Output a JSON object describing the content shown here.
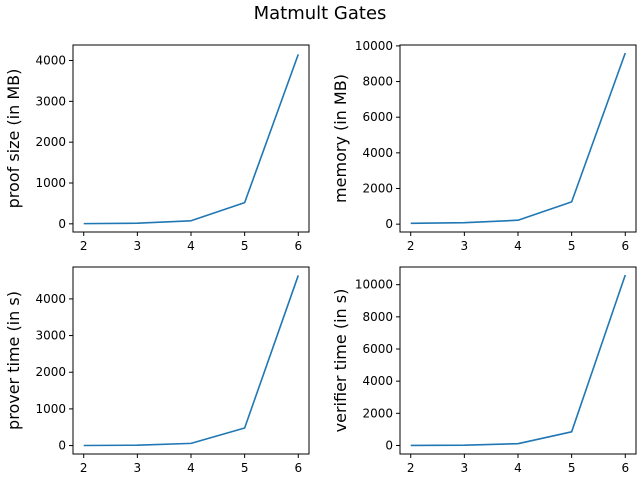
{
  "figure": {
    "title": "Matmult Gates"
  },
  "colors": {
    "series": "#1f77b4"
  },
  "chart_data": [
    {
      "type": "line",
      "x": [
        2,
        3,
        4,
        5,
        6
      ],
      "values": [
        5,
        15,
        75,
        520,
        4150
      ],
      "ylabel": "proof size (in MB)",
      "xlim": [
        1.8,
        6.2
      ],
      "ylim": [
        -200,
        4380
      ],
      "xticks": [
        2,
        3,
        4,
        5,
        6
      ],
      "yticks": [
        0,
        1000,
        2000,
        3000,
        4000
      ],
      "grid": false
    },
    {
      "type": "line",
      "x": [
        2,
        3,
        4,
        5,
        6
      ],
      "values": [
        50,
        80,
        220,
        1250,
        9600
      ],
      "ylabel": "memory (in MB)",
      "xlim": [
        1.8,
        6.2
      ],
      "ylim": [
        -440,
        10050
      ],
      "xticks": [
        2,
        3,
        4,
        5,
        6
      ],
      "yticks": [
        0,
        2000,
        4000,
        6000,
        8000,
        10000
      ],
      "grid": false
    },
    {
      "type": "line",
      "x": [
        2,
        3,
        4,
        5,
        6
      ],
      "values": [
        2,
        10,
        60,
        480,
        4640
      ],
      "ylabel": "prover time (in s)",
      "xlim": [
        1.8,
        6.2
      ],
      "ylim": [
        -230,
        4870
      ],
      "xticks": [
        2,
        3,
        4,
        5,
        6
      ],
      "yticks": [
        0,
        1000,
        2000,
        3000,
        4000
      ],
      "grid": false
    },
    {
      "type": "line",
      "x": [
        2,
        3,
        4,
        5,
        6
      ],
      "values": [
        5,
        20,
        110,
        850,
        10600
      ],
      "ylabel": "verifier time (in s)",
      "xlim": [
        1.8,
        6.2
      ],
      "ylim": [
        -530,
        11100
      ],
      "xticks": [
        2,
        3,
        4,
        5,
        6
      ],
      "yticks": [
        0,
        2000,
        4000,
        6000,
        8000,
        10000
      ],
      "grid": false
    }
  ]
}
